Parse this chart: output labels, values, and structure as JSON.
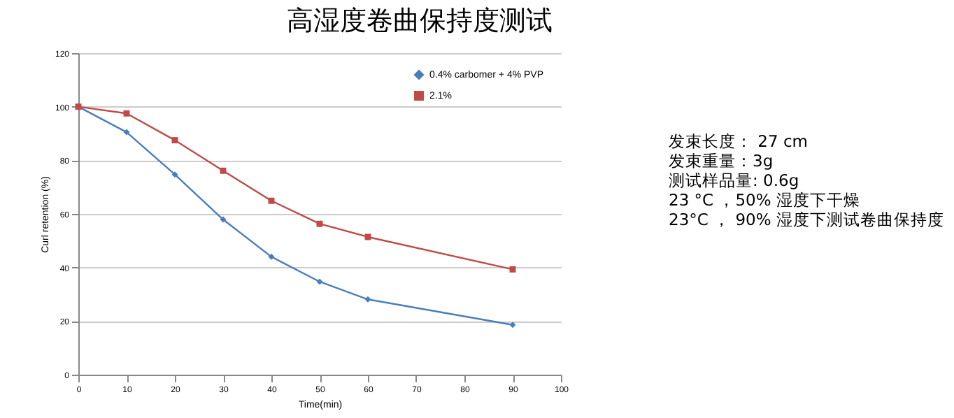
{
  "chart_data": {
    "type": "line",
    "title": "高湿度卷曲保持度测试",
    "xlabel": "Time(min)",
    "ylabel": "Curl retention (%)",
    "x": [
      0,
      10,
      20,
      30,
      40,
      50,
      60,
      90
    ],
    "series": [
      {
        "name": "0.4% carbomer + 4% PVP",
        "color": "#4a7ebb",
        "marker": "diamond",
        "values": [
          100,
          90.5,
          74.7,
          57.9,
          44,
          34.7,
          28.1,
          18.6
        ]
      },
      {
        "name": "2.1%",
        "color": "#be4b48",
        "marker": "square",
        "values": [
          100,
          97.5,
          87.5,
          76.1,
          64.9,
          56.3,
          51.4,
          39.3
        ]
      }
    ],
    "xlim": [
      0,
      100
    ],
    "xticks": [
      0,
      10,
      20,
      30,
      40,
      50,
      60,
      70,
      80,
      90,
      100
    ],
    "ylim": [
      0,
      120
    ],
    "yticks": [
      0,
      20,
      40,
      60,
      80,
      100,
      120
    ],
    "grid": "y",
    "legend": "top right",
    "line_style": "solid",
    "annotations": [
      "发束长度： 27 cm",
      "发束重量：3g",
      "测试样品量: 0.6g",
      "23 °C ，50% 湿度下干燥",
      "23°C ， 90% 湿度下测试卷曲保持度"
    ]
  }
}
